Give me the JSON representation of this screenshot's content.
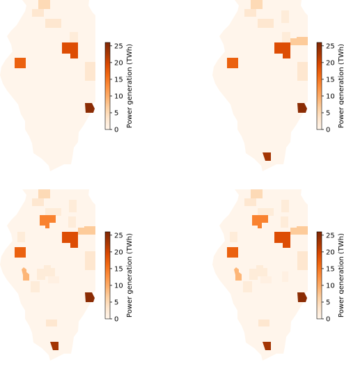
{
  "colorbar": {
    "label": "Power generation (TWh)",
    "ticks": [
      0,
      5,
      10,
      15,
      20,
      25
    ],
    "range": [
      0,
      26
    ],
    "colormap": "Oranges",
    "colors": [
      "#fff5eb",
      "#fee6ce",
      "#fdd0a2",
      "#fdae6b",
      "#fd8d3c",
      "#f16913",
      "#d94801",
      "#a63603",
      "#7f2704"
    ]
  },
  "panels": [
    {
      "id": "top-left",
      "counties": [
        {
          "id": "a",
          "value": 5
        },
        {
          "id": "b",
          "value": 3
        },
        {
          "id": "c",
          "value": 3
        },
        {
          "id": "d",
          "value": 2
        },
        {
          "id": "e",
          "value": 19
        },
        {
          "id": "f",
          "value": 17
        },
        {
          "id": "g",
          "value": 3
        },
        {
          "id": "h",
          "value": 25
        }
      ]
    },
    {
      "id": "top-right",
      "counties": [
        {
          "id": "a",
          "value": 5
        },
        {
          "id": "b",
          "value": 3
        },
        {
          "id": "c",
          "value": 3
        },
        {
          "id": "d",
          "value": 2
        },
        {
          "id": "i",
          "value": 2
        },
        {
          "id": "e",
          "value": 19
        },
        {
          "id": "j",
          "value": 7
        },
        {
          "id": "f",
          "value": 17
        },
        {
          "id": "g",
          "value": 3
        },
        {
          "id": "h",
          "value": 25
        },
        {
          "id": "k",
          "value": 23
        }
      ]
    },
    {
      "id": "bottom-left",
      "counties": [
        {
          "id": "a",
          "value": 5
        },
        {
          "id": "b",
          "value": 3
        },
        {
          "id": "l",
          "value": 2
        },
        {
          "id": "m",
          "value": 2
        },
        {
          "id": "n",
          "value": 14
        },
        {
          "id": "i",
          "value": 2
        },
        {
          "id": "e",
          "value": 19
        },
        {
          "id": "j",
          "value": 7
        },
        {
          "id": "o",
          "value": 2
        },
        {
          "id": "f",
          "value": 17
        },
        {
          "id": "p",
          "value": 9
        },
        {
          "id": "q",
          "value": 2
        },
        {
          "id": "r",
          "value": 1
        },
        {
          "id": "g",
          "value": 3
        },
        {
          "id": "s",
          "value": 2
        },
        {
          "id": "h",
          "value": 25
        },
        {
          "id": "t",
          "value": 3
        },
        {
          "id": "k",
          "value": 23
        }
      ]
    },
    {
      "id": "bottom-right",
      "counties": [
        {
          "id": "a",
          "value": 5
        },
        {
          "id": "b",
          "value": 3
        },
        {
          "id": "l",
          "value": 2
        },
        {
          "id": "m",
          "value": 2
        },
        {
          "id": "n",
          "value": 14
        },
        {
          "id": "i",
          "value": 2
        },
        {
          "id": "e",
          "value": 19
        },
        {
          "id": "j",
          "value": 7
        },
        {
          "id": "o",
          "value": 2
        },
        {
          "id": "f",
          "value": 17
        },
        {
          "id": "p",
          "value": 9
        },
        {
          "id": "q",
          "value": 2
        },
        {
          "id": "r",
          "value": 1
        },
        {
          "id": "g",
          "value": 3
        },
        {
          "id": "s",
          "value": 2
        },
        {
          "id": "u",
          "value": 1
        },
        {
          "id": "h",
          "value": 25
        },
        {
          "id": "t",
          "value": 3
        },
        {
          "id": "k",
          "value": 23
        }
      ]
    }
  ]
}
